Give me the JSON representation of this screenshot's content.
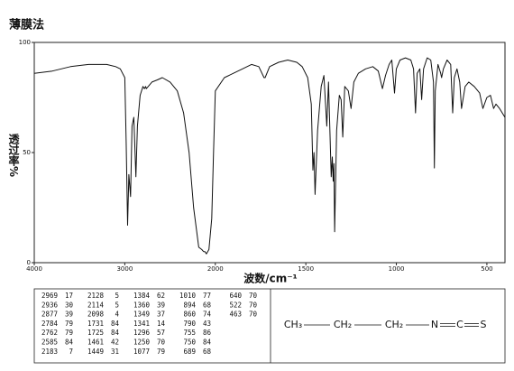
{
  "chart_data": {
    "type": "line",
    "title": "薄膜法",
    "xlabel": "波数/cm⁻¹",
    "ylabel": "透过率%",
    "xlim": [
      4000,
      400
    ],
    "x_scale_break": 2000,
    "x_scale_ratio": 2,
    "xticks": [
      4000,
      3000,
      2000,
      1500,
      1000,
      500
    ],
    "ylim": [
      0,
      100
    ],
    "yticks": [
      0,
      50,
      100
    ],
    "x": [
      4000,
      3800,
      3600,
      3400,
      3200,
      3100,
      3050,
      3000,
      2985,
      2969,
      2955,
      2936,
      2920,
      2900,
      2877,
      2860,
      2830,
      2800,
      2784,
      2770,
      2762,
      2700,
      2640,
      2585,
      2500,
      2420,
      2350,
      2290,
      2240,
      2183,
      2150,
      2128,
      2114,
      2098,
      2070,
      2040,
      2020,
      2000,
      1950,
      1900,
      1850,
      1800,
      1760,
      1731,
      1725,
      1700,
      1650,
      1600,
      1550,
      1520,
      1490,
      1470,
      1461,
      1455,
      1449,
      1435,
      1415,
      1400,
      1384,
      1375,
      1360,
      1354,
      1349,
      1345,
      1341,
      1330,
      1315,
      1305,
      1296,
      1285,
      1265,
      1250,
      1235,
      1210,
      1170,
      1130,
      1100,
      1077,
      1060,
      1040,
      1025,
      1010,
      1000,
      980,
      950,
      920,
      905,
      894,
      885,
      870,
      860,
      850,
      830,
      810,
      795,
      790,
      785,
      770,
      755,
      750,
      740,
      720,
      700,
      689,
      680,
      665,
      650,
      640,
      620,
      600,
      570,
      540,
      522,
      500,
      480,
      463,
      450,
      430,
      400
    ],
    "series": [
      {
        "name": "spectrum",
        "color": "#111111",
        "values": [
          86,
          87,
          89,
          90,
          90,
          89,
          88,
          84,
          55,
          17,
          40,
          30,
          62,
          66,
          39,
          62,
          76,
          80,
          79,
          80,
          79,
          82,
          83,
          84,
          82,
          78,
          68,
          50,
          25,
          7,
          6,
          5,
          5,
          4,
          6,
          20,
          50,
          78,
          84,
          86,
          88,
          90,
          89,
          84,
          84,
          89,
          91,
          92,
          91,
          89,
          84,
          72,
          42,
          50,
          31,
          60,
          80,
          85,
          62,
          82,
          39,
          48,
          37,
          45,
          14,
          60,
          76,
          74,
          57,
          80,
          78,
          70,
          82,
          86,
          88,
          89,
          87,
          79,
          85,
          90,
          92,
          77,
          88,
          92,
          93,
          92,
          88,
          68,
          86,
          88,
          74,
          88,
          93,
          92,
          82,
          43,
          78,
          90,
          86,
          84,
          88,
          92,
          90,
          68,
          84,
          88,
          82,
          70,
          80,
          82,
          80,
          77,
          70,
          75,
          76,
          70,
          72,
          70,
          66
        ]
      }
    ]
  },
  "peak_table": {
    "columns": [
      [
        [
          2969,
          17
        ],
        [
          2936,
          30
        ],
        [
          2877,
          39
        ],
        [
          2784,
          79
        ],
        [
          2762,
          79
        ],
        [
          2585,
          84
        ],
        [
          2183,
          7
        ]
      ],
      [
        [
          2128,
          5
        ],
        [
          2114,
          5
        ],
        [
          2098,
          4
        ],
        [
          1731,
          84
        ],
        [
          1725,
          84
        ],
        [
          1461,
          42
        ],
        [
          1449,
          31
        ]
      ],
      [
        [
          1384,
          62
        ],
        [
          1360,
          39
        ],
        [
          1349,
          37
        ],
        [
          1341,
          14
        ],
        [
          1296,
          57
        ],
        [
          1250,
          70
        ],
        [
          1077,
          79
        ]
      ],
      [
        [
          1010,
          77
        ],
        [
          894,
          68
        ],
        [
          860,
          74
        ],
        [
          790,
          43
        ],
        [
          755,
          86
        ],
        [
          750,
          84
        ],
        [
          689,
          68
        ]
      ],
      [
        [
          640,
          70
        ],
        [
          522,
          70
        ],
        [
          463,
          70
        ]
      ]
    ]
  },
  "structure": {
    "atoms": [
      "CH₃",
      "CH₂",
      "CH₂",
      "N",
      "C",
      "S"
    ]
  }
}
